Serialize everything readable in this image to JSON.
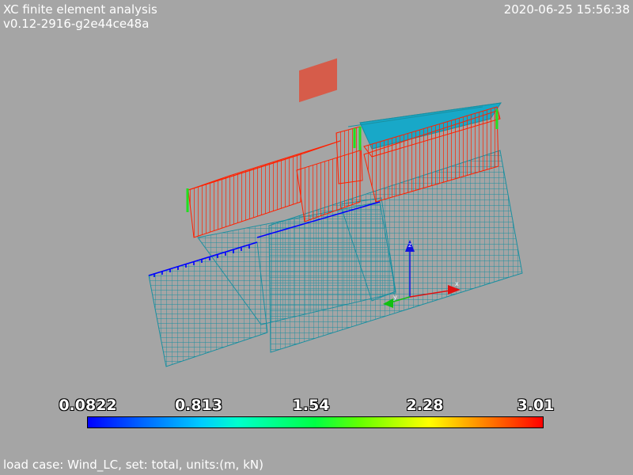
{
  "header": {
    "app_title": "XC finite element analysis",
    "version": "v0.12-2916-g2e44ce48a",
    "timestamp": "2020-06-25 15:56:38"
  },
  "colorbar": {
    "labels": [
      "0.0822",
      "0.813",
      "1.54",
      "2.28",
      "3.01"
    ],
    "min": 0.0822,
    "max": 3.01,
    "colormap": "blue-cyan-green-yellow-red"
  },
  "axes": {
    "x_label": "x",
    "y_label": "y",
    "z_label": "z",
    "x_color": "#e01010",
    "y_color": "#10c010",
    "z_color": "#1010e0"
  },
  "colors": {
    "background": "#a5a5a5",
    "mesh": "#1a8fa0",
    "load_arrows": "#ff2000",
    "support": "#20e020",
    "edge_arrows": "#0000ff"
  },
  "footer": {
    "status": "load case: Wind_LC, set: total, units:(m, kN)"
  }
}
